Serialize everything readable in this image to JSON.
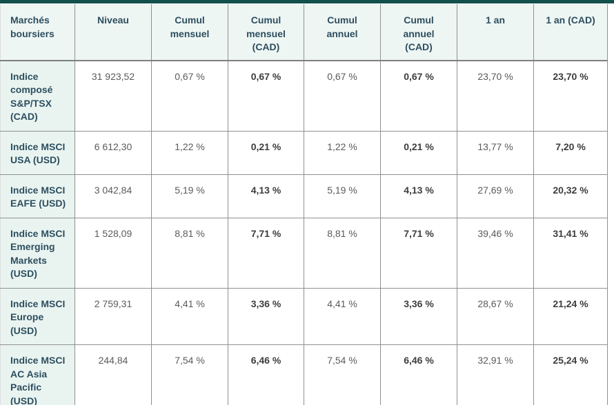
{
  "table": {
    "accent_color": "#12504c",
    "header_bg": "#eef6f4",
    "label_column_bg": "#e9f4f1",
    "header_text_color": "#2d4e5e",
    "value_text_color": "#5a5a5c",
    "bold_value_text_color": "#3d3d3f",
    "columns": [
      {
        "label": "Marchés boursiers",
        "bold_values": false
      },
      {
        "label": "Niveau",
        "bold_values": false
      },
      {
        "label": "Cumul mensuel",
        "bold_values": false
      },
      {
        "label": "Cumul mensuel (CAD)",
        "bold_values": true
      },
      {
        "label": "Cumul annuel",
        "bold_values": false
      },
      {
        "label": "Cumul annuel (CAD)",
        "bold_values": true
      },
      {
        "label": "1 an",
        "bold_values": false
      },
      {
        "label": "1 an (CAD)",
        "bold_values": true
      }
    ],
    "rows": [
      {
        "label": "Indice composé S&P/TSX (CAD)",
        "values": [
          "31 923,52",
          "0,67 %",
          "0,67 %",
          "0,67 %",
          "0,67 %",
          "23,70 %",
          "23,70 %"
        ]
      },
      {
        "label": "Indice MSCI USA (USD)",
        "values": [
          "6 612,30",
          "1,22 %",
          "0,21 %",
          "1,22 %",
          "0,21 %",
          "13,77 %",
          "7,20 %"
        ]
      },
      {
        "label": "Indice MSCI EAFE (USD)",
        "values": [
          "3 042,84",
          "5,19 %",
          "4,13 %",
          "5,19 %",
          "4,13 %",
          "27,69 %",
          "20,32 %"
        ]
      },
      {
        "label": "Indice MSCI Emerging Markets (USD)",
        "values": [
          "1 528,09",
          "8,81 %",
          "7,71 %",
          "8,81 %",
          "7,71 %",
          "39,46 %",
          "31,41 %"
        ]
      },
      {
        "label": "Indice MSCI Europe (USD)",
        "values": [
          "2 759,31",
          "4,41 %",
          "3,36 %",
          "4,41 %",
          "3,36 %",
          "28,67 %",
          "21,24 %"
        ]
      },
      {
        "label": "Indice MSCI AC Asia Pacific (USD)",
        "values": [
          "244,84",
          "7,54 %",
          "6,46 %",
          "7,54 %",
          "6,46 %",
          "32,91 %",
          "25,24 %"
        ]
      }
    ]
  }
}
